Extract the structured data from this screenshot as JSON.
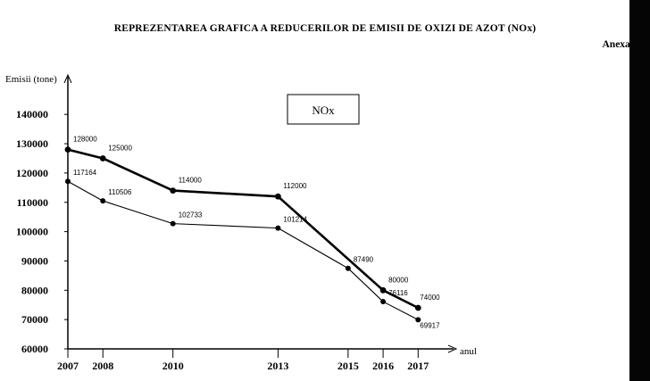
{
  "page": {
    "title": "REPREZENTAREA GRAFICA A REDUCERILOR DE EMISII DE OXIZI DE AZOT (NOx)",
    "annex": "Anexa nr."
  },
  "chart_data": {
    "type": "line",
    "title": "REPREZENTAREA GRAFICA A REDUCERILOR DE EMISII DE OXIZI DE AZOT (NOx)",
    "ylabel": "Emisii (tone)",
    "xlabel": "anul",
    "legend": "NOx",
    "ylim": [
      60000,
      147000
    ],
    "xlim": [
      2007,
      2017.4
    ],
    "y_ticks": [
      60000,
      70000,
      80000,
      90000,
      100000,
      110000,
      120000,
      130000,
      140000
    ],
    "x_ticks": [
      2007,
      2008,
      2010,
      2013,
      2015,
      2016,
      2017
    ],
    "series": [
      {
        "x": [
          2007,
          2008,
          2010,
          2013,
          2016,
          2017
        ],
        "values": [
          128000,
          125000,
          114000,
          112000,
          80000,
          74000
        ],
        "labels": [
          "128000",
          "125000",
          "114000",
          "112000",
          "80000",
          "74000"
        ],
        "color": "#000000",
        "weight": "bold"
      },
      {
        "x": [
          2007,
          2008,
          2010,
          2013,
          2015,
          2016,
          2017
        ],
        "values": [
          117164,
          110506,
          102733,
          101214,
          87490,
          76116,
          69917
        ],
        "labels": [
          "117164",
          "110506",
          "102733",
          "101214",
          "87490",
          "76116",
          "69917"
        ],
        "color": "#000000",
        "weight": "thin"
      }
    ],
    "grid": false,
    "legend_placement": "top-center"
  }
}
